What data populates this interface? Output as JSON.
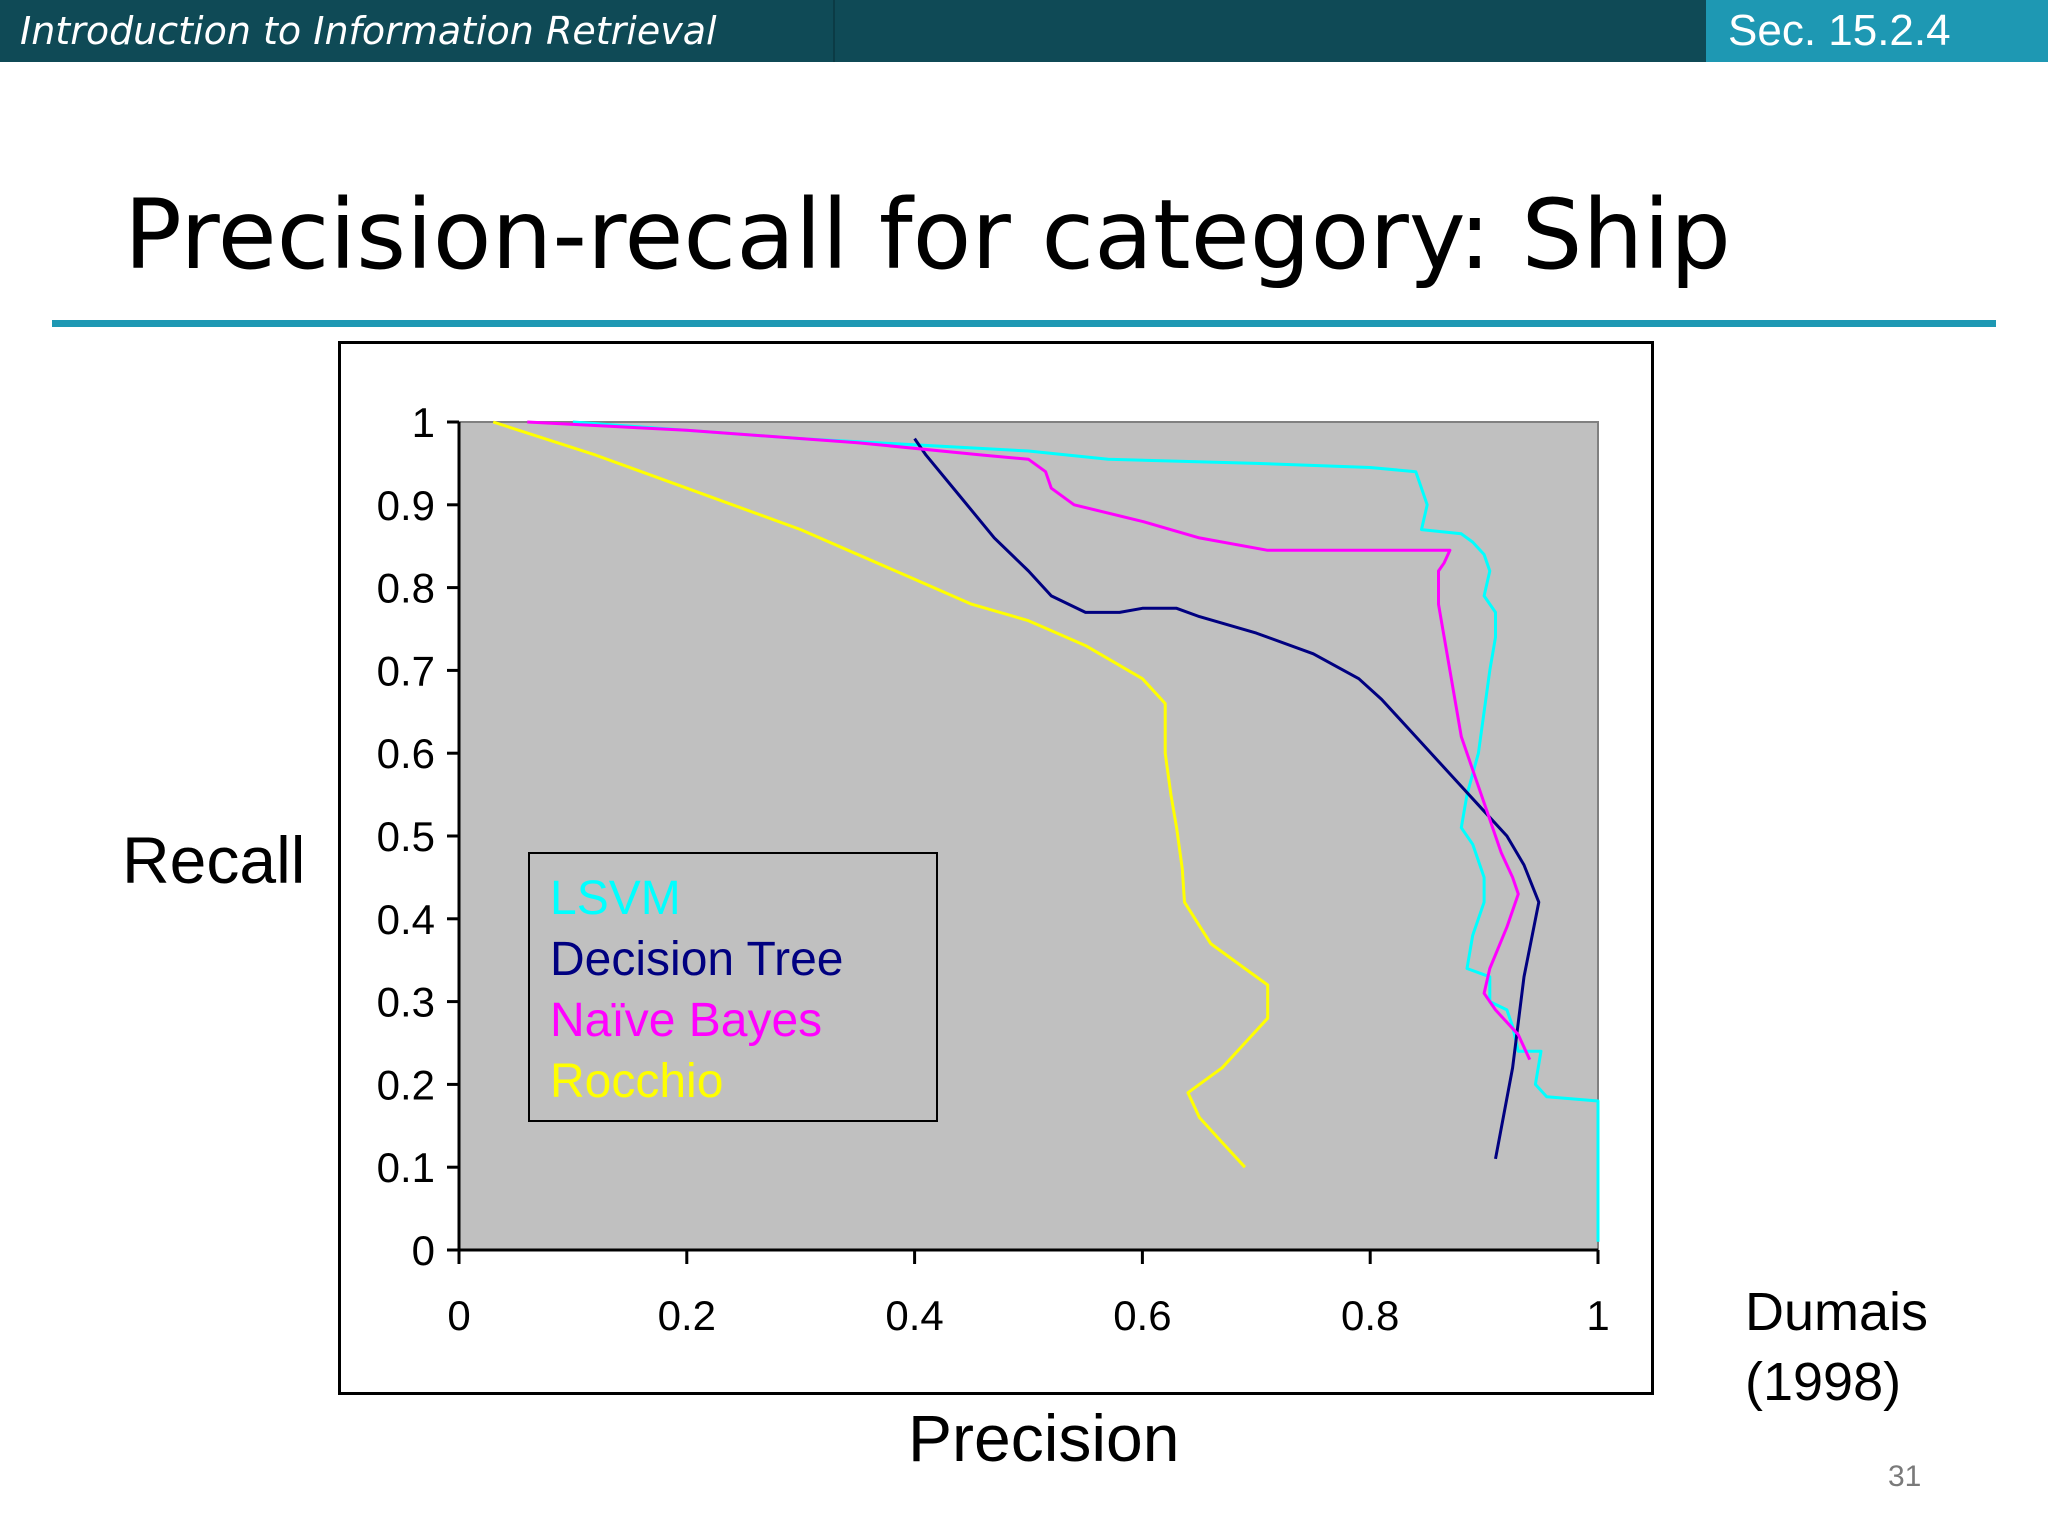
{
  "header": {
    "course_title": "Introduction to Information Retrieval",
    "section": "Sec. 15.2.4"
  },
  "slide": {
    "title": "Precision-recall for category: Ship",
    "citation_line1": "Dumais",
    "citation_line2": "(1998)",
    "page_number": "31"
  },
  "colors": {
    "header_bar": "#0f4a56",
    "accent": "#1e98b3",
    "plot_background": "#c0c0c0",
    "lsvm": "#00ffff",
    "decision_tree": "#000080",
    "naive_bayes": "#ff00ff",
    "rocchio": "#ffff00"
  },
  "chart_data": {
    "type": "line",
    "title": "",
    "xlabel": "Precision",
    "ylabel": "Recall",
    "xlim": [
      0,
      1
    ],
    "ylim": [
      0,
      1
    ],
    "xticks": [
      "0",
      "0.2",
      "0.4",
      "0.6",
      "0.8",
      "1"
    ],
    "yticks": [
      "0",
      "0.1",
      "0.2",
      "0.3",
      "0.4",
      "0.5",
      "0.6",
      "0.7",
      "0.8",
      "0.9",
      "1"
    ],
    "grid": false,
    "legend_position": "lower-left",
    "series": [
      {
        "name": "LSVM",
        "color": "#00ffff",
        "points": [
          [
            0.1,
            1.0
          ],
          [
            0.3,
            0.98
          ],
          [
            0.5,
            0.965
          ],
          [
            0.57,
            0.955
          ],
          [
            0.7,
            0.95
          ],
          [
            0.8,
            0.945
          ],
          [
            0.84,
            0.94
          ],
          [
            0.845,
            0.92
          ],
          [
            0.85,
            0.9
          ],
          [
            0.845,
            0.87
          ],
          [
            0.88,
            0.865
          ],
          [
            0.89,
            0.855
          ],
          [
            0.9,
            0.84
          ],
          [
            0.905,
            0.82
          ],
          [
            0.9,
            0.79
          ],
          [
            0.91,
            0.77
          ],
          [
            0.91,
            0.74
          ],
          [
            0.905,
            0.7
          ],
          [
            0.9,
            0.65
          ],
          [
            0.895,
            0.6
          ],
          [
            0.885,
            0.55
          ],
          [
            0.88,
            0.51
          ],
          [
            0.89,
            0.49
          ],
          [
            0.895,
            0.47
          ],
          [
            0.9,
            0.45
          ],
          [
            0.9,
            0.42
          ],
          [
            0.89,
            0.38
          ],
          [
            0.885,
            0.34
          ],
          [
            0.905,
            0.33
          ],
          [
            0.905,
            0.3
          ],
          [
            0.92,
            0.29
          ],
          [
            0.925,
            0.27
          ],
          [
            0.93,
            0.24
          ],
          [
            0.95,
            0.24
          ],
          [
            0.945,
            0.2
          ],
          [
            0.955,
            0.185
          ],
          [
            1.0,
            0.18
          ],
          [
            1.0,
            0.01
          ]
        ]
      },
      {
        "name": "Decision Tree",
        "color": "#000080",
        "points": [
          [
            0.4,
            0.98
          ],
          [
            0.41,
            0.96
          ],
          [
            0.44,
            0.91
          ],
          [
            0.47,
            0.86
          ],
          [
            0.5,
            0.82
          ],
          [
            0.52,
            0.79
          ],
          [
            0.55,
            0.77
          ],
          [
            0.58,
            0.77
          ],
          [
            0.6,
            0.775
          ],
          [
            0.63,
            0.775
          ],
          [
            0.65,
            0.765
          ],
          [
            0.7,
            0.745
          ],
          [
            0.75,
            0.72
          ],
          [
            0.79,
            0.69
          ],
          [
            0.81,
            0.665
          ],
          [
            0.84,
            0.62
          ],
          [
            0.87,
            0.575
          ],
          [
            0.9,
            0.53
          ],
          [
            0.92,
            0.5
          ],
          [
            0.935,
            0.465
          ],
          [
            0.948,
            0.42
          ],
          [
            0.935,
            0.33
          ],
          [
            0.925,
            0.22
          ],
          [
            0.91,
            0.11
          ]
        ]
      },
      {
        "name": "Naïve Bayes",
        "color": "#ff00ff",
        "points": [
          [
            0.06,
            1.0
          ],
          [
            0.2,
            0.99
          ],
          [
            0.35,
            0.975
          ],
          [
            0.46,
            0.96
          ],
          [
            0.5,
            0.955
          ],
          [
            0.515,
            0.94
          ],
          [
            0.52,
            0.92
          ],
          [
            0.54,
            0.9
          ],
          [
            0.6,
            0.88
          ],
          [
            0.65,
            0.86
          ],
          [
            0.71,
            0.845
          ],
          [
            0.87,
            0.845
          ],
          [
            0.865,
            0.83
          ],
          [
            0.86,
            0.82
          ],
          [
            0.86,
            0.78
          ],
          [
            0.865,
            0.74
          ],
          [
            0.87,
            0.7
          ],
          [
            0.88,
            0.62
          ],
          [
            0.89,
            0.58
          ],
          [
            0.9,
            0.54
          ],
          [
            0.915,
            0.48
          ],
          [
            0.925,
            0.45
          ],
          [
            0.93,
            0.43
          ],
          [
            0.92,
            0.39
          ],
          [
            0.905,
            0.34
          ],
          [
            0.9,
            0.31
          ],
          [
            0.91,
            0.29
          ],
          [
            0.93,
            0.26
          ],
          [
            0.94,
            0.23
          ]
        ]
      },
      {
        "name": "Rocchio",
        "color": "#ffff00",
        "points": [
          [
            0.03,
            1.0
          ],
          [
            0.12,
            0.96
          ],
          [
            0.2,
            0.92
          ],
          [
            0.3,
            0.87
          ],
          [
            0.4,
            0.81
          ],
          [
            0.45,
            0.78
          ],
          [
            0.5,
            0.76
          ],
          [
            0.55,
            0.73
          ],
          [
            0.6,
            0.69
          ],
          [
            0.62,
            0.66
          ],
          [
            0.62,
            0.6
          ],
          [
            0.625,
            0.55
          ],
          [
            0.63,
            0.51
          ],
          [
            0.635,
            0.46
          ],
          [
            0.637,
            0.42
          ],
          [
            0.66,
            0.37
          ],
          [
            0.69,
            0.34
          ],
          [
            0.71,
            0.32
          ],
          [
            0.71,
            0.28
          ],
          [
            0.69,
            0.25
          ],
          [
            0.67,
            0.22
          ],
          [
            0.64,
            0.19
          ],
          [
            0.65,
            0.16
          ],
          [
            0.67,
            0.13
          ],
          [
            0.69,
            0.1
          ]
        ]
      }
    ]
  }
}
